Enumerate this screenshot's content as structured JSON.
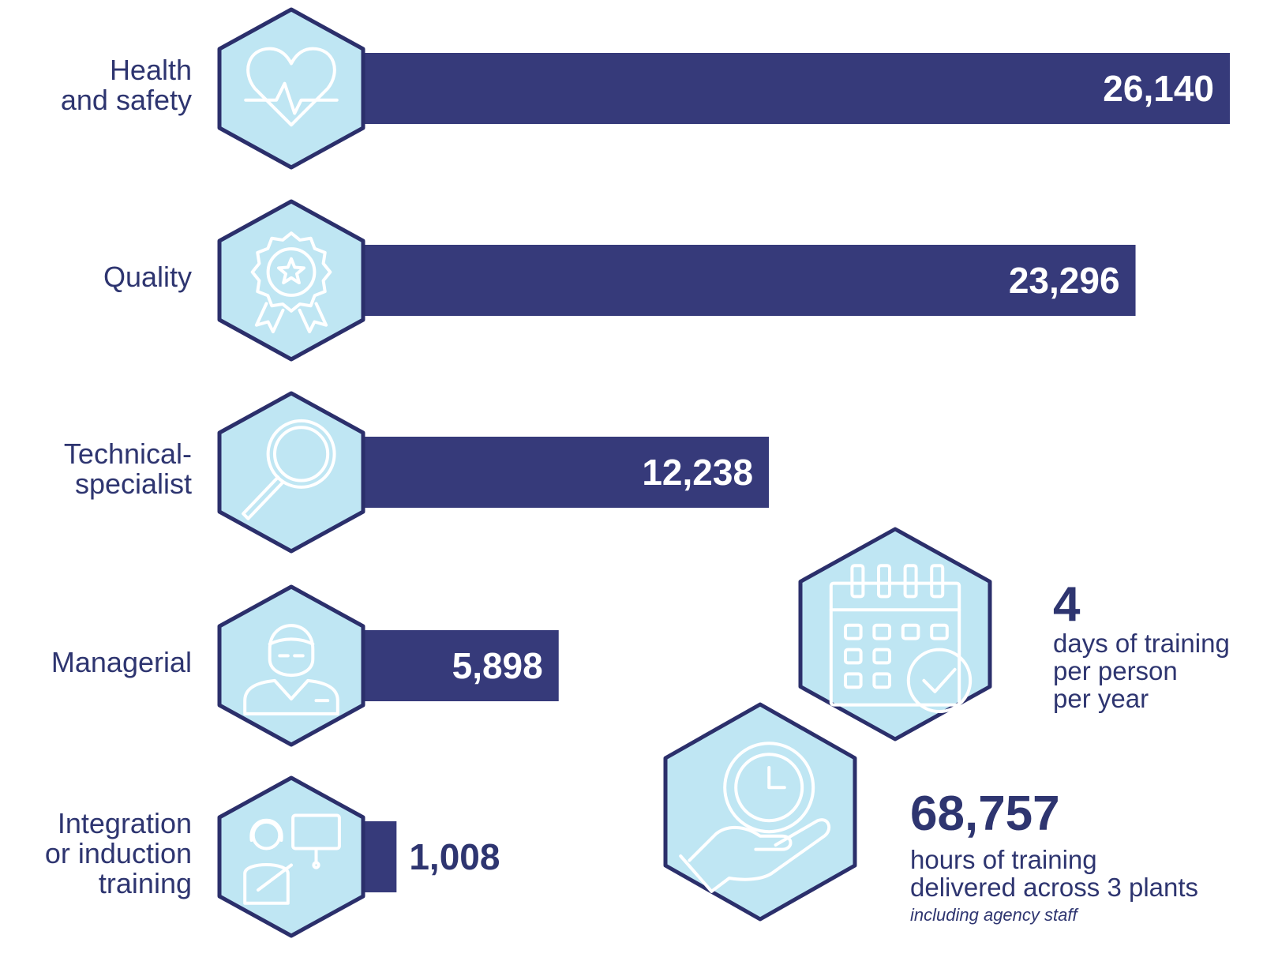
{
  "chart_data": {
    "type": "bar",
    "orientation": "horizontal",
    "categories": [
      "Health\nand safety",
      "Quality",
      "Technical-\nspecialist",
      "Managerial",
      "Integration\nor induction\ntraining"
    ],
    "values": [
      26140,
      23296,
      12238,
      5898,
      1008
    ],
    "value_labels": [
      "26,140",
      "23,296",
      "12,238",
      "5,898",
      "1,008"
    ],
    "icons": [
      "heartbeat-icon",
      "award-ribbon-icon",
      "magnifier-icon",
      "manager-icon",
      "trainer-icon"
    ],
    "title": "",
    "xlabel": "",
    "ylabel": "",
    "xlim": [
      0,
      26140
    ],
    "grid": false,
    "legend": "none"
  },
  "stats": {
    "days": {
      "number": "4",
      "text": "days of training\nper person\nper year",
      "icon": "calendar-check-icon"
    },
    "hours": {
      "number": "68,757",
      "text": "hours of training\ndelivered across 3 plants",
      "note": "including agency staff",
      "icon": "hand-clock-icon"
    }
  },
  "colors": {
    "bar": "#363a7a",
    "hex_fill": "#bfe6f3",
    "hex_stroke": "#2b2f6b",
    "text": "#2e3570",
    "value_label_inside": "#ffffff"
  }
}
